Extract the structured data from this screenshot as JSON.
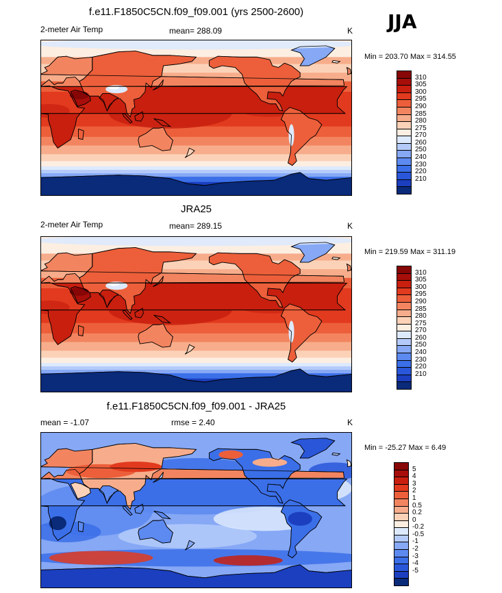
{
  "season": "JJA",
  "palette": {
    "temperature": [
      "#0a2a7a",
      "#1b3fbf",
      "#2a57d9",
      "#3b6fe8",
      "#5c8af0",
      "#86a8f5",
      "#b4cbfa",
      "#dde9fd",
      "#fdeee2",
      "#fbd2b8",
      "#f7ad8b",
      "#f28560",
      "#ec5f3a",
      "#e23a1e",
      "#c81f0f",
      "#a70e0a",
      "#870606"
    ],
    "difference": [
      "#0a2a7a",
      "#1b3fbf",
      "#2a57d9",
      "#3b6fe8",
      "#5c8af0",
      "#86a8f5",
      "#b4cbfa",
      "#dde9fd",
      "#fdeee2",
      "#fbd2b8",
      "#f7ad8b",
      "#f28560",
      "#ec5f3a",
      "#e23a1e",
      "#c81f0f",
      "#a70e0a",
      "#870606"
    ],
    "coastline": "#000000"
  },
  "chart_data": [
    {
      "type": "heatmap",
      "title": "f.e11.F1850C5CN.f09_f09.001 (yrs 2500-2600)",
      "variable": "2-meter Air Temp",
      "units": "K",
      "mean_label": "mean= 288.09",
      "min_max": "Min = 203.70 Max = 314.55",
      "levels": [
        "310",
        "305",
        "300",
        "295",
        "290",
        "285",
        "280",
        "275",
        "270",
        "260",
        "250",
        "240",
        "230",
        "220",
        "210"
      ]
    },
    {
      "type": "heatmap",
      "title": "JRA25",
      "variable": "2-meter Air Temp",
      "units": "K",
      "mean_label": "mean= 289.15",
      "min_max": "Min = 219.59 Max = 311.19",
      "levels": [
        "310",
        "305",
        "300",
        "295",
        "290",
        "285",
        "280",
        "275",
        "270",
        "260",
        "250",
        "240",
        "230",
        "220",
        "210"
      ]
    },
    {
      "type": "heatmap",
      "title": "f.e11.F1850C5CN.f09_f09.001 - JRA25",
      "mean_label": "mean =  -1.07",
      "rmse_label": "rmse =   2.40",
      "units": "K",
      "min_max": "Min = -25.27 Max =   6.49",
      "levels": [
        "5",
        "4",
        "3",
        "2",
        "1",
        "0.5",
        "0.2",
        "0",
        "-0.2",
        "-0.5",
        "-1",
        "-2",
        "-3",
        "-4",
        "-5"
      ]
    }
  ]
}
